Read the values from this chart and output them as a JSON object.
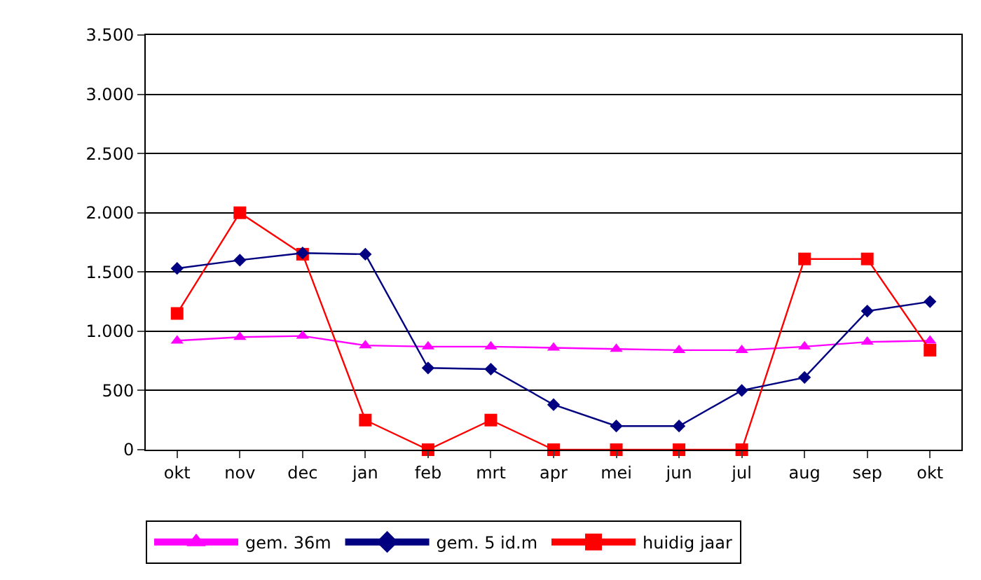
{
  "chart_data": {
    "type": "line",
    "categories": [
      "okt",
      "nov",
      "dec",
      "jan",
      "feb",
      "mrt",
      "apr",
      "mei",
      "jun",
      "jul",
      "aug",
      "sep",
      "okt"
    ],
    "series": [
      {
        "name": "gem. 36m",
        "color": "#ff00ff",
        "marker": "triangle",
        "values": [
          920,
          950,
          960,
          880,
          870,
          870,
          860,
          850,
          840,
          840,
          870,
          910,
          920
        ]
      },
      {
        "name": "gem. 5 id.m",
        "color": "#000080",
        "marker": "diamond",
        "values": [
          1530,
          1600,
          1660,
          1650,
          690,
          680,
          380,
          200,
          200,
          500,
          610,
          1170,
          1250
        ]
      },
      {
        "name": "huidig jaar",
        "color": "#ff0000",
        "marker": "square",
        "values": [
          1150,
          2000,
          1650,
          250,
          0,
          250,
          0,
          0,
          0,
          0,
          1610,
          1610,
          840
        ]
      }
    ],
    "ylim": [
      0,
      3500
    ],
    "yticks": [
      0,
      {
        "value": 500,
        "label": "500"
      },
      {
        "value": 1000,
        "label": "1.000"
      },
      {
        "value": 1500,
        "label": "1.500"
      },
      {
        "value": 2000,
        "label": "2.000"
      },
      {
        "value": 2500,
        "label": "2.500"
      },
      {
        "value": 3000,
        "label": "3.000"
      },
      {
        "value": 3500,
        "label": "3.500"
      }
    ],
    "grid": "y",
    "legend": "bottom"
  }
}
